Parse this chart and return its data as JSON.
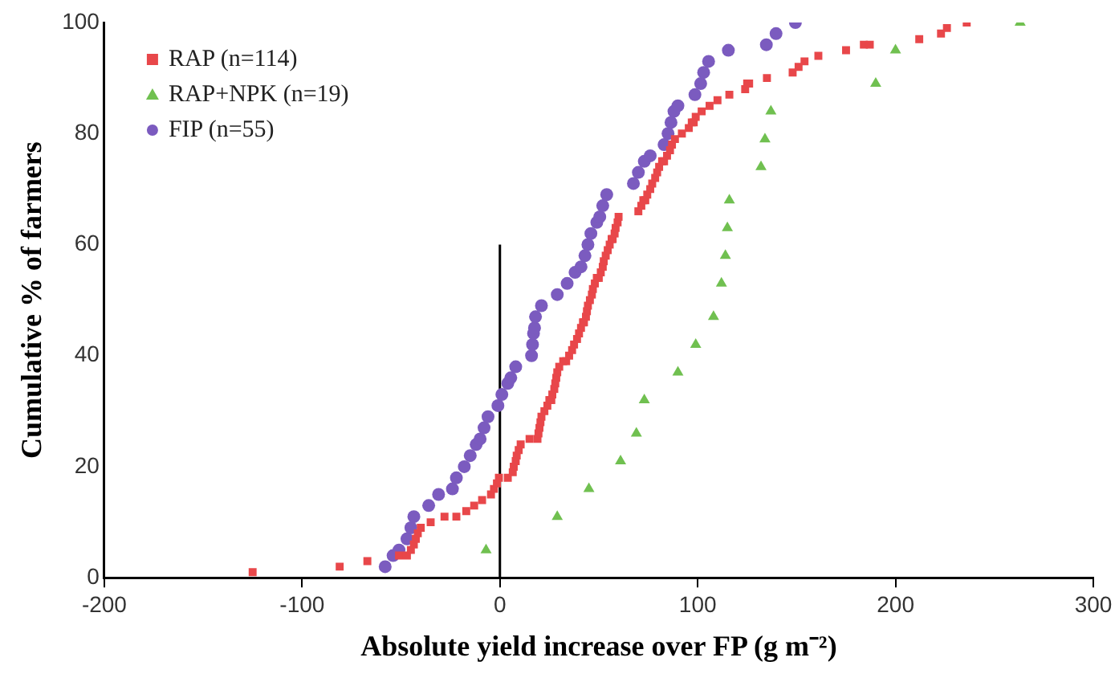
{
  "chart_data": {
    "type": "scatter",
    "xlabel": "Absolute yield increase over FP (g m⁻²)",
    "ylabel": "Cumulative % of farmers",
    "xlim": [
      -200,
      300
    ],
    "xticks": [
      -200,
      -100,
      0,
      100,
      200,
      300
    ],
    "ylim": [
      0,
      100
    ],
    "yticks": [
      0,
      20,
      40,
      60,
      80,
      100
    ],
    "grid": false,
    "legend": "top left",
    "series": [
      {
        "name": "RAP (n=114)",
        "color": "#e8474a",
        "marker": "square",
        "x": [
          -125,
          -81,
          -67,
          -51,
          -47,
          -45,
          -43.5,
          -42.5,
          -41.5,
          -40,
          -35,
          -28,
          -22,
          -17,
          -13,
          -9,
          -4.5,
          -3,
          -1.5,
          -0.5,
          4,
          6.5,
          7,
          8,
          8.5,
          9.5,
          10.5,
          15,
          19,
          19.5,
          20,
          20.5,
          21,
          22.5,
          24,
          25,
          26,
          26.5,
          27.5,
          28,
          28.5,
          29,
          30,
          32,
          33.5,
          35,
          36.5,
          37.5,
          39,
          40,
          41,
          42,
          42.5,
          43.5,
          44,
          44.5,
          45.5,
          46.5,
          47,
          48,
          49,
          50,
          51,
          52,
          52.5,
          53.5,
          54.5,
          55.5,
          56.5,
          57,
          58,
          58.5,
          59.5,
          60,
          70,
          71.5,
          72.5,
          73.5,
          74.5,
          76,
          77,
          78.5,
          79.5,
          80.5,
          82,
          83,
          84.5,
          86,
          87,
          88.5,
          92,
          95.5,
          97,
          98,
          99,
          102,
          106,
          110,
          116,
          124,
          125,
          126,
          135,
          148,
          151,
          154,
          161,
          175,
          184,
          187,
          212,
          223,
          226,
          236
        ],
        "values": [
          1,
          2,
          3,
          4,
          4,
          5,
          6,
          7,
          8,
          9,
          10,
          11,
          11,
          12,
          13,
          14,
          15,
          16,
          17,
          18,
          18,
          19,
          20,
          21,
          22,
          23,
          24,
          25,
          25,
          26,
          27,
          28,
          29,
          30,
          31,
          32,
          32,
          33,
          34,
          35,
          36,
          37,
          38,
          39,
          39,
          40,
          41,
          42,
          43,
          44,
          45,
          46,
          46,
          47,
          48,
          49,
          50,
          51,
          52,
          53,
          54,
          54,
          55,
          56,
          57,
          58,
          59,
          60,
          61,
          61,
          62,
          63,
          64,
          65,
          66,
          67,
          68,
          68,
          69,
          70,
          71,
          72,
          73,
          74,
          75,
          75,
          76,
          77,
          78,
          79,
          80,
          81,
          82,
          82,
          83,
          84,
          85,
          86,
          87,
          88,
          89,
          89,
          90,
          91,
          92,
          93,
          94,
          95,
          96,
          96,
          97,
          98,
          99,
          100
        ]
      },
      {
        "name": "RAP+NPK (n=19)",
        "color": "#70c050",
        "marker": "triangle",
        "x": [
          -7,
          29,
          45,
          61,
          69,
          73,
          90,
          99,
          108,
          112,
          114,
          115,
          116,
          132,
          134,
          137,
          190,
          200,
          263
        ],
        "values": [
          5,
          11,
          16,
          21,
          26,
          32,
          37,
          42,
          47,
          53,
          58,
          63,
          68,
          74,
          79,
          84,
          89,
          95,
          100
        ]
      },
      {
        "name": "FIP (n=55)",
        "color": "#7b5bbf",
        "marker": "circle",
        "x": [
          -58,
          -54,
          -51,
          -47,
          -45,
          -43.5,
          -36,
          -31,
          -24,
          -22,
          -18,
          -15,
          -12,
          -10,
          -8,
          -6,
          -1,
          1,
          4,
          5.5,
          8,
          16,
          16.5,
          17,
          17.5,
          18,
          21,
          29,
          34,
          38,
          41,
          43,
          44.5,
          46,
          49,
          50.5,
          52,
          54,
          67.5,
          70,
          73,
          76,
          83,
          85,
          86.5,
          88,
          90,
          98.6,
          101.5,
          103,
          105.5,
          115.5,
          134.7,
          139.6,
          149.4
        ],
        "values": [
          2,
          4,
          5,
          7,
          9,
          11,
          13,
          15,
          16,
          18,
          20,
          22,
          24,
          25,
          27,
          29,
          31,
          33,
          35,
          36,
          38,
          40,
          42,
          44,
          45,
          47,
          49,
          51,
          53,
          55,
          56,
          58,
          60,
          62,
          64,
          65,
          67,
          69,
          71,
          73,
          75,
          76,
          78,
          80,
          82,
          84,
          85,
          87,
          89,
          91,
          93,
          95,
          96,
          98,
          100
        ]
      },
      {
        "type": "line",
        "color": "#000000",
        "marker": "none",
        "x": [
          0,
          0
        ],
        "values": [
          0,
          60
        ]
      }
    ]
  }
}
